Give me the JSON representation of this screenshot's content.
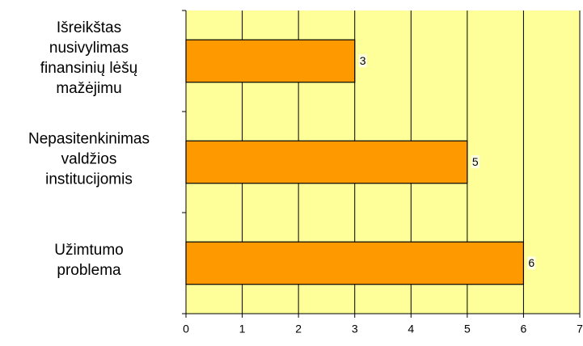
{
  "chart_data": {
    "type": "bar",
    "orientation": "horizontal",
    "categories": [
      "Išreikštas\nnusivylimas\nfinansinių lėšų\nmažėjimu",
      "Nepasitenkinimas\nvaldžios\ninstitucijomis",
      "Užimtumo\nproblema"
    ],
    "values": [
      3,
      5,
      6
    ],
    "color": "#ff9900",
    "xlim": [
      0,
      7
    ],
    "xticks": [
      0,
      1,
      2,
      3,
      4,
      5,
      6,
      7
    ],
    "grid": true
  }
}
